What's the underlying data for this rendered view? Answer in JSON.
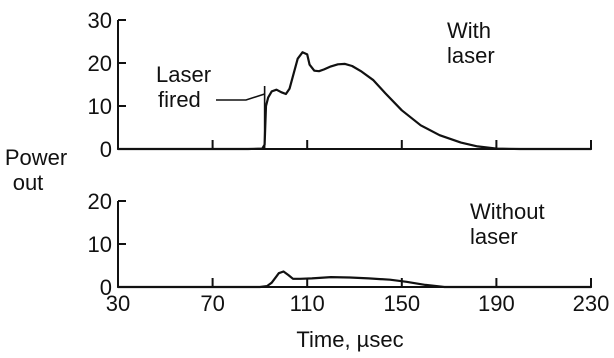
{
  "chart_data": [
    {
      "type": "line",
      "panel": "top",
      "annotation": "With\nlaser",
      "callout": "Laser\nfired",
      "callout_x": 92,
      "xlim": [
        30,
        230
      ],
      "ylim": [
        0,
        30
      ],
      "y_ticks": [
        0,
        10,
        20,
        30
      ],
      "x_ticks": [
        30,
        70,
        110,
        150,
        190,
        230
      ],
      "x": [
        30,
        60,
        85,
        91,
        92,
        92.6,
        93.5,
        95,
        97,
        99,
        101,
        102.5,
        104,
        106,
        108,
        110,
        111,
        113,
        115,
        117,
        120,
        123,
        126,
        129,
        133,
        138,
        143,
        150,
        158,
        166,
        175,
        182,
        190,
        200,
        215,
        230
      ],
      "values": [
        0,
        0,
        0,
        0.1,
        1,
        10,
        12,
        13.4,
        13.8,
        13.2,
        12.8,
        14,
        17,
        21,
        22.5,
        22,
        19.6,
        18.2,
        18.1,
        18.5,
        19.2,
        19.7,
        19.8,
        19.3,
        18,
        16,
        13,
        9,
        5.5,
        3.2,
        1.5,
        0.6,
        0.1,
        0,
        0,
        0
      ]
    },
    {
      "type": "line",
      "panel": "bottom",
      "annotation": "Without\nlaser",
      "xlim": [
        30,
        230
      ],
      "ylim": [
        0,
        20
      ],
      "y_ticks": [
        0,
        10,
        20
      ],
      "x_ticks": [
        30,
        70,
        110,
        150,
        190,
        230
      ],
      "x_tick_labels": [
        "30",
        "70",
        "110",
        "150",
        "190",
        "230"
      ],
      "xlabel": "Time, µsec",
      "x": [
        30,
        70,
        90,
        93,
        95,
        97,
        98,
        100,
        102,
        104,
        107,
        112,
        120,
        128,
        136,
        145,
        152,
        160,
        168,
        190,
        230
      ],
      "values": [
        0,
        0,
        0,
        0.2,
        1,
        2.5,
        3.2,
        3.6,
        2.8,
        1.9,
        1.9,
        2,
        2.3,
        2.2,
        2,
        1.7,
        1.2,
        0.5,
        0,
        0,
        0
      ]
    }
  ],
  "ylabel": "Power\nout"
}
